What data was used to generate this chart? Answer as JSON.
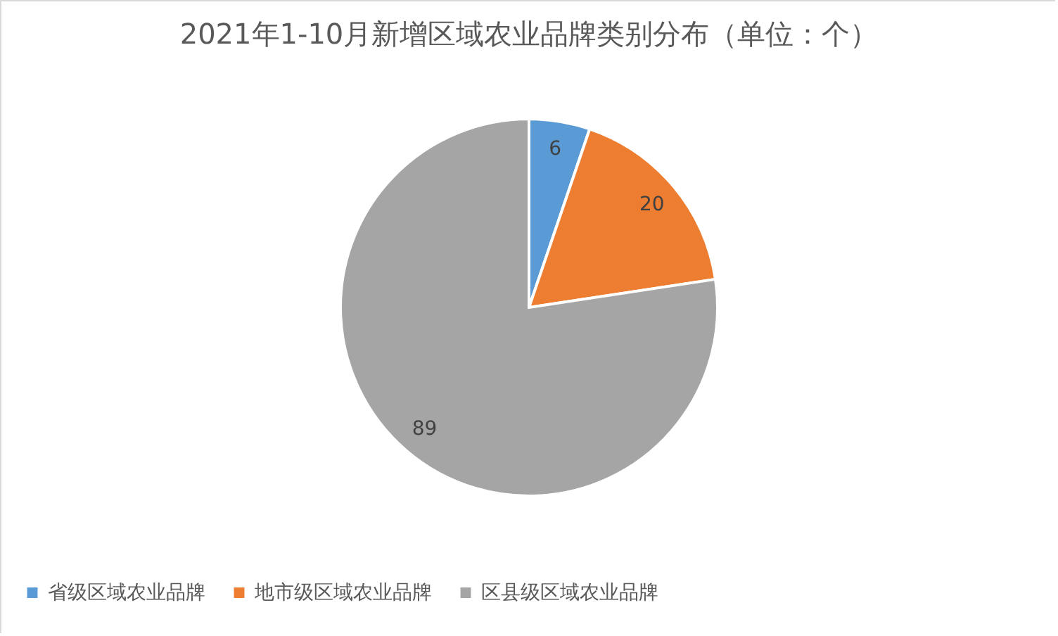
{
  "chart_data": {
    "type": "pie",
    "title": "2021年1-10月新增区域农业品牌类别分布（单位：个）",
    "categories": [
      "省级区域农业品牌",
      "地市级区域农业品牌",
      "区县级区域农业品牌"
    ],
    "values": [
      6,
      20,
      89
    ],
    "colors": [
      "#5b9bd5",
      "#ed7d31",
      "#a5a5a5"
    ],
    "data_labels": true,
    "legend": "bottom"
  }
}
